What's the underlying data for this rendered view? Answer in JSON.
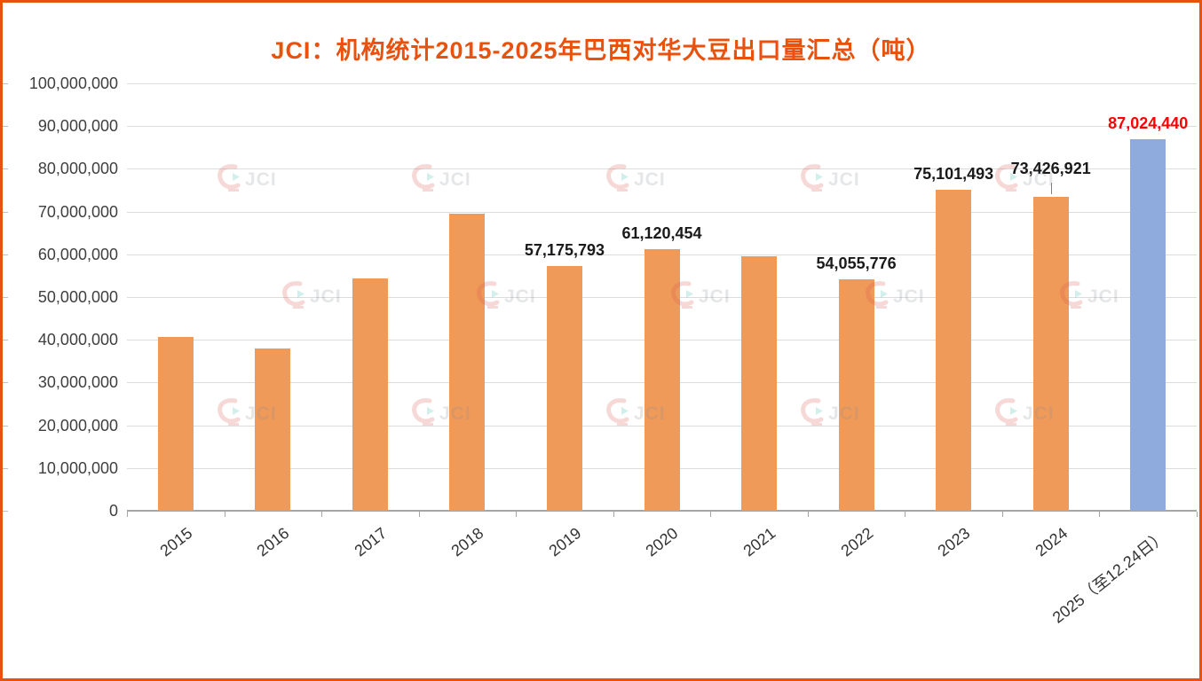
{
  "chart_data": {
    "type": "bar",
    "title": "JCI：机构统计2015-2025年巴西对华大豆出口量汇总（吨）",
    "categories": [
      "2015",
      "2016",
      "2017",
      "2018",
      "2019",
      "2020",
      "2021",
      "2022",
      "2023",
      "2024",
      "2025（至12.24日）"
    ],
    "values": [
      40600000,
      37900000,
      54300000,
      69400000,
      57175793,
      61120454,
      59600000,
      54055776,
      75101493,
      73426921,
      87024440
    ],
    "data_labels": [
      "",
      "",
      "",
      "",
      "57,175,793",
      "61,120,454",
      "",
      "54,055,776",
      "75,101,493",
      "73,426,921",
      "87,024,440"
    ],
    "ylim": [
      0,
      100000000
    ],
    "ytick_interval": 10000000,
    "ytick_labels": [
      "0",
      "10,000,000",
      "20,000,000",
      "30,000,000",
      "40,000,000",
      "50,000,000",
      "60,000,000",
      "70,000,000",
      "80,000,000",
      "90,000,000",
      "100,000,000"
    ],
    "xlabel": "",
    "ylabel": "",
    "grid": true,
    "legend": "none",
    "bar_color": "#F09A59",
    "highlight_index": 10,
    "highlight_bar_color": "#8FAADC",
    "label_color": "#1A1A1A",
    "highlight_label_color": "#FF0000",
    "callout_index": 9,
    "title_color": "#E8520E",
    "border_color": "#E8520E",
    "watermark": "JCI"
  }
}
